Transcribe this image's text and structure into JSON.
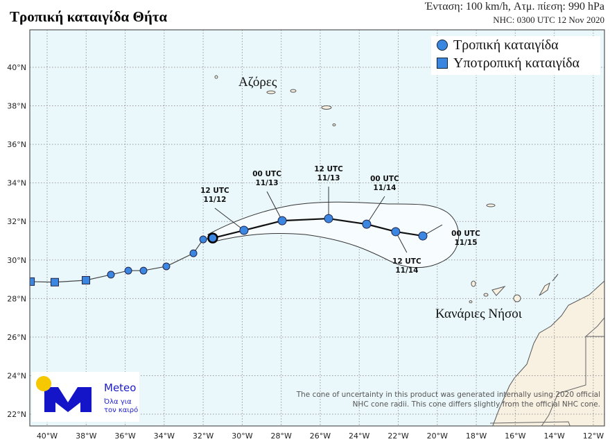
{
  "header": {
    "title": "Τροπική καταιγίδα Θήτα",
    "intensity_line": "Ένταση: 100 km/h, Ατμ. πίεση: 990 hPa",
    "source_line": "NHC:  0300 UTC 12 Nov 2020"
  },
  "legend": {
    "items": [
      {
        "label": "Τροπική καταιγίδα",
        "symbol": "circle"
      },
      {
        "label": "Υποτροπική καταιγίδα",
        "symbol": "square"
      }
    ]
  },
  "map": {
    "lon_range": [
      -40.9,
      -11.4
    ],
    "lat_range": [
      21.4,
      41.6
    ],
    "ocean_color": "#eaf8fc",
    "land_color": "#f8f0e1",
    "marker_color": "#3a86e0",
    "x_ticks": [
      "40°W",
      "38°W",
      "36°W",
      "34°W",
      "32°W",
      "30°W",
      "28°W",
      "26°W",
      "24°W",
      "22°W",
      "20°W",
      "18°W",
      "16°W",
      "14°W",
      "12°W"
    ],
    "y_ticks": [
      "40°N",
      "38°N",
      "36°N",
      "34°N",
      "32°N",
      "30°N",
      "28°N",
      "26°N",
      "24°N",
      "22°N"
    ],
    "places": [
      {
        "name": "Αζόρες"
      },
      {
        "name": "Κανάριες Νήσοι"
      }
    ]
  },
  "track": {
    "past": [
      {
        "lon": -40.85,
        "lat": 28.88,
        "type": "square"
      },
      {
        "lon": -39.61,
        "lat": 28.85,
        "type": "square"
      },
      {
        "lon": -38.01,
        "lat": 28.95,
        "type": "square"
      },
      {
        "lon": -36.73,
        "lat": 29.24,
        "type": "circle"
      },
      {
        "lon": -35.84,
        "lat": 29.45,
        "type": "circle"
      },
      {
        "lon": -35.06,
        "lat": 29.45,
        "type": "circle"
      },
      {
        "lon": -33.89,
        "lat": 29.67,
        "type": "circle"
      },
      {
        "lon": -32.5,
        "lat": 30.35,
        "type": "circle"
      },
      {
        "lon": -32.0,
        "lat": 31.07,
        "type": "circle"
      }
    ],
    "current": {
      "lon": -31.51,
      "lat": 31.14,
      "type": "circle"
    },
    "forecast": [
      {
        "lon": -29.91,
        "lat": 31.54,
        "time": "12 UTC",
        "date": "11/12"
      },
      {
        "lon": -27.95,
        "lat": 32.04,
        "time": "00 UTC",
        "date": "11/13"
      },
      {
        "lon": -25.57,
        "lat": 32.15,
        "time": "12 UTC",
        "date": "11/13"
      },
      {
        "lon": -23.62,
        "lat": 31.86,
        "time": "00 UTC",
        "date": "11/14"
      },
      {
        "lon": -22.13,
        "lat": 31.47,
        "time": "12 UTC",
        "date": "11/14"
      },
      {
        "lon": -20.74,
        "lat": 31.25,
        "time": "00 UTC",
        "date": "11/15"
      }
    ]
  },
  "note": {
    "line1": "The cone of uncertainty in this product was generated internally using 2020 official",
    "line2": "NHC cone radii. This cone differs slightly from the official NHC cone."
  },
  "logo": {
    "name": "Meteo",
    "tagline1": "Όλα για",
    "tagline2": "τον καιρό"
  }
}
